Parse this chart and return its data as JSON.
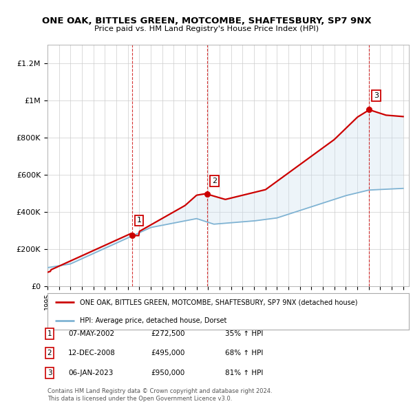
{
  "title": "ONE OAK, BITTLES GREEN, MOTCOMBE, SHAFTESBURY, SP7 9NX",
  "subtitle": "Price paid vs. HM Land Registry's House Price Index (HPI)",
  "ylabel_ticks": [
    "£0",
    "£200K",
    "£400K",
    "£600K",
    "£800K",
    "£1M",
    "£1.2M"
  ],
  "ytick_vals": [
    0,
    200000,
    400000,
    600000,
    800000,
    1000000,
    1200000
  ],
  "ylim": [
    0,
    1300000
  ],
  "xlim_start": 1995.0,
  "xlim_end": 2026.5,
  "legend_line1": "ONE OAK, BITTLES GREEN, MOTCOMBE, SHAFTESBURY, SP7 9NX (detached house)",
  "legend_line2": "HPI: Average price, detached house, Dorset",
  "transactions": [
    {
      "num": 1,
      "date": "07-MAY-2002",
      "price": 272500,
      "pct": "35%",
      "x": 2002.36
    },
    {
      "num": 2,
      "date": "12-DEC-2008",
      "price": 495000,
      "pct": "68%",
      "x": 2008.95
    },
    {
      "num": 3,
      "date": "06-JAN-2023",
      "price": 950000,
      "pct": "81%",
      "x": 2023.03
    }
  ],
  "footnote1": "Contains HM Land Registry data © Crown copyright and database right 2024.",
  "footnote2": "This data is licensed under the Open Government Licence v3.0.",
  "red_color": "#cc0000",
  "blue_color": "#7fb3d3",
  "shading_color": "#cce0f0",
  "background_color": "#ffffff",
  "grid_color": "#cccccc"
}
